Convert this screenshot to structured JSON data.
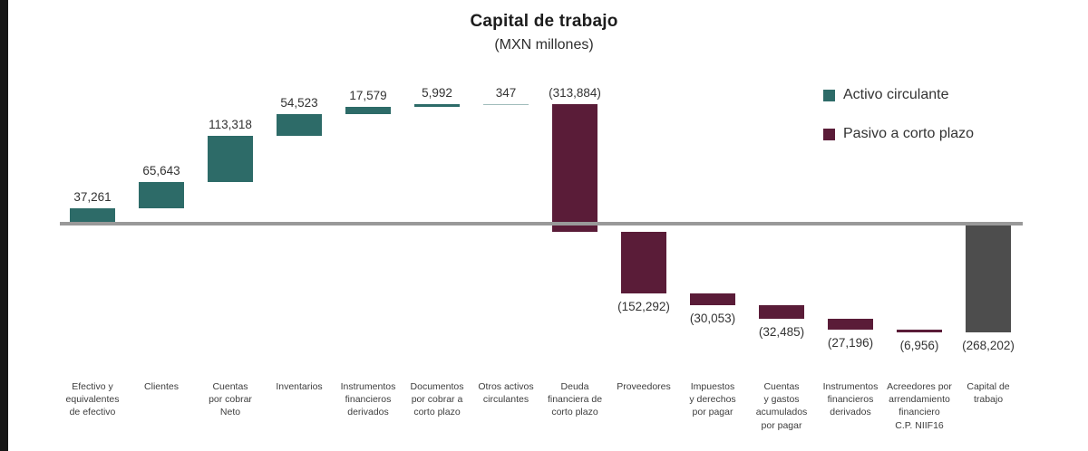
{
  "chart_data": {
    "type": "bar",
    "variant": "waterfall",
    "title": "Capital de trabajo",
    "subtitle": "(MXN millones)",
    "grid": "off",
    "baseline_value": 0,
    "legend": {
      "position": "top-right",
      "items": [
        {
          "key": "activo",
          "label": "Activo circulante",
          "color": "#2d6b68"
        },
        {
          "key": "pasivo",
          "label": "Pasivo a corto plazo",
          "color": "#5a1c38"
        }
      ]
    },
    "colors": {
      "activo": "#2d6b68",
      "pasivo": "#5a1c38",
      "total": "#4d4d4d",
      "baseline": "#999999"
    },
    "bars": [
      {
        "category": "Efectivo y\nequivalentes\nde efectivo",
        "value": 37261,
        "display": "37,261",
        "kind": "activo",
        "total": false
      },
      {
        "category": "Clientes",
        "value": 65643,
        "display": "65,643",
        "kind": "activo",
        "total": false
      },
      {
        "category": "Cuentas\npor cobrar\nNeto",
        "value": 113318,
        "display": "113,318",
        "kind": "activo",
        "total": false
      },
      {
        "category": "Inventarios",
        "value": 54523,
        "display": "54,523",
        "kind": "activo",
        "total": false
      },
      {
        "category": "Instrumentos\nfinancieros\nderivados",
        "value": 17579,
        "display": "17,579",
        "kind": "activo",
        "total": false
      },
      {
        "category": "Documentos\npor cobrar a\ncorto plazo",
        "value": 5992,
        "display": "5,992",
        "kind": "activo",
        "total": false
      },
      {
        "category": "Otros activos\ncirculantes",
        "value": 347,
        "display": "347",
        "kind": "activo",
        "total": false
      },
      {
        "category": "Deuda\nfinanciera de\ncorto plazo",
        "value": -313884,
        "display": "(313,884)",
        "kind": "pasivo",
        "total": false
      },
      {
        "category": "Proveedores",
        "value": -152292,
        "display": "(152,292)",
        "kind": "pasivo",
        "total": false
      },
      {
        "category": "Impuestos\ny derechos\npor pagar",
        "value": -30053,
        "display": "(30,053)",
        "kind": "pasivo",
        "total": false
      },
      {
        "category": "Cuentas\ny gastos\nacumulados\npor pagar",
        "value": -32485,
        "display": "(32,485)",
        "kind": "pasivo",
        "total": false
      },
      {
        "category": "Instrumentos\nfinancieros\nderivados",
        "value": -27196,
        "display": "(27,196)",
        "kind": "pasivo",
        "total": false
      },
      {
        "category": "Acreedores por\narrendamiento\nfinanciero\nC.P. NIIF16",
        "value": -6956,
        "display": "(6,956)",
        "kind": "pasivo",
        "total": false
      },
      {
        "category": "Capital de\ntrabajo",
        "value": -268202,
        "display": "(268,202)",
        "kind": "total",
        "total": true
      }
    ]
  }
}
